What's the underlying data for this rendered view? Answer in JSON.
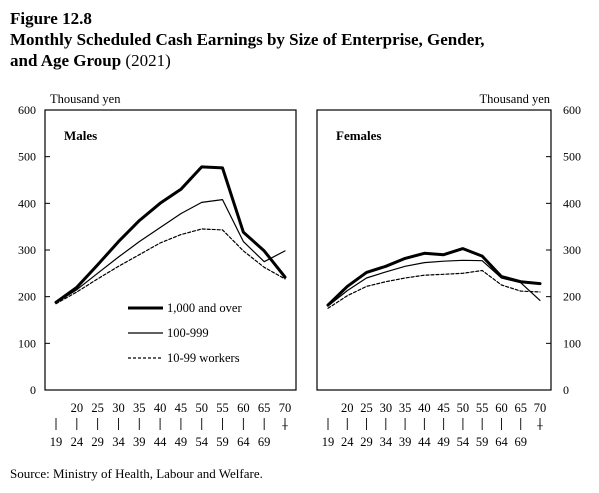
{
  "figure": {
    "label": "Figure 12.8",
    "title_line1": "Monthly Scheduled Cash Earnings by Size of Enterprise, Gender,",
    "title_line2": "and Age Group",
    "year": "(2021)",
    "source": "Source:  Ministry of Health, Labour and Welfare."
  },
  "chart_data": [
    {
      "type": "line",
      "panel_title": "Males",
      "ylabel": "Thousand yen",
      "ylim": [
        0,
        600
      ],
      "yticks": [
        "0",
        "100",
        "200",
        "300",
        "400",
        "500",
        "600"
      ],
      "x_top": [
        "20",
        "25",
        "30",
        "35",
        "40",
        "45",
        "50",
        "55",
        "60",
        "65",
        "70"
      ],
      "x_bottom": [
        "19",
        "24",
        "29",
        "34",
        "39",
        "44",
        "49",
        "54",
        "59",
        "64",
        "69",
        "+"
      ],
      "legend": [
        "1,000 and over",
        "100-999",
        "10-99 workers"
      ],
      "series": [
        {
          "name": "1,000 and over",
          "values": [
            188,
            220,
            268,
            318,
            363,
            400,
            430,
            478,
            476,
            338,
            298,
            242
          ]
        },
        {
          "name": "100-999",
          "values": [
            187,
            215,
            250,
            285,
            318,
            348,
            378,
            402,
            408,
            318,
            275,
            298
          ]
        },
        {
          "name": "10-99 workers",
          "values": [
            185,
            210,
            238,
            265,
            290,
            315,
            333,
            345,
            343,
            298,
            263,
            238
          ]
        }
      ]
    },
    {
      "type": "line",
      "panel_title": "Females",
      "ylabel": "Thousand yen",
      "ylim": [
        0,
        600
      ],
      "yticks": [
        "0",
        "100",
        "200",
        "300",
        "400",
        "500",
        "600"
      ],
      "x_top": [
        "20",
        "25",
        "30",
        "35",
        "40",
        "45",
        "50",
        "55",
        "60",
        "65",
        "70"
      ],
      "x_bottom": [
        "19",
        "24",
        "29",
        "34",
        "39",
        "44",
        "49",
        "54",
        "59",
        "64",
        "69",
        "+"
      ],
      "series": [
        {
          "name": "1,000 and over",
          "values": [
            182,
            222,
            252,
            265,
            282,
            293,
            290,
            303,
            287,
            243,
            232,
            228
          ]
        },
        {
          "name": "100-999",
          "values": [
            180,
            213,
            240,
            253,
            265,
            273,
            276,
            278,
            277,
            240,
            230,
            192
          ]
        },
        {
          "name": "10-99 workers",
          "values": [
            175,
            202,
            222,
            232,
            240,
            246,
            248,
            250,
            256,
            225,
            212,
            210
          ]
        }
      ]
    }
  ]
}
